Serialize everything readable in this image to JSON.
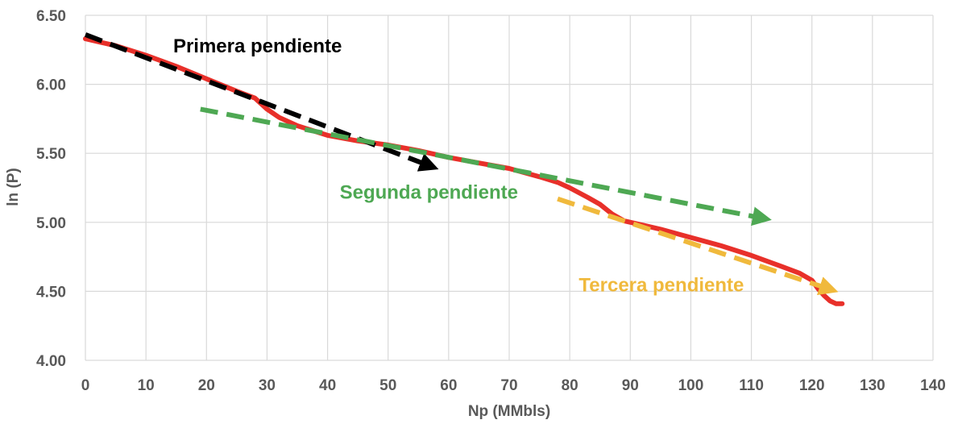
{
  "chart_data": {
    "type": "line",
    "xlabel": "Np (MMbls)",
    "ylabel": "ln (P)",
    "xlim": [
      0,
      140
    ],
    "ylim": [
      4.0,
      6.5
    ],
    "x_ticks": [
      0,
      10,
      20,
      30,
      40,
      50,
      60,
      70,
      80,
      90,
      100,
      110,
      120,
      130,
      140
    ],
    "y_ticks": [
      "4.00",
      "4.50",
      "5.00",
      "5.50",
      "6.00",
      "6.50"
    ],
    "grid": true,
    "series": [
      {
        "color": "#e8302a",
        "x": [
          0,
          5,
          10,
          15,
          20,
          25,
          28,
          30,
          32,
          35,
          40,
          45,
          50,
          55,
          60,
          65,
          70,
          75,
          78,
          80,
          83,
          85,
          87,
          89,
          92,
          95,
          100,
          105,
          110,
          115,
          118,
          120,
          121,
          122,
          123,
          124,
          125
        ],
        "y": [
          6.33,
          6.28,
          6.21,
          6.13,
          6.04,
          5.95,
          5.9,
          5.82,
          5.76,
          5.7,
          5.63,
          5.59,
          5.56,
          5.52,
          5.47,
          5.43,
          5.39,
          5.33,
          5.29,
          5.25,
          5.18,
          5.13,
          5.06,
          5.01,
          4.98,
          4.95,
          4.89,
          4.83,
          4.76,
          4.68,
          4.63,
          4.58,
          4.52,
          4.47,
          4.43,
          4.41,
          4.41
        ]
      }
    ],
    "trend_arrows": [
      {
        "color": "#000000",
        "x": [
          0,
          58
        ],
        "y": [
          6.36,
          5.39
        ]
      },
      {
        "color": "#4ea853",
        "x": [
          19,
          113
        ],
        "y": [
          5.82,
          5.02
        ]
      },
      {
        "color": "#f0b93c",
        "x": [
          78,
          124
        ],
        "y": [
          5.17,
          4.5
        ]
      }
    ],
    "annotations": [
      {
        "text": "Primera pendiente",
        "x": 14.5,
        "y": 6.23,
        "color": "#000000"
      },
      {
        "text": "Segunda pendiente",
        "x": 42,
        "y": 5.17,
        "color": "#4ea853"
      },
      {
        "text": "Tercera pendiente",
        "x": 81.5,
        "y": 4.5,
        "color": "#f0b93c"
      }
    ]
  }
}
